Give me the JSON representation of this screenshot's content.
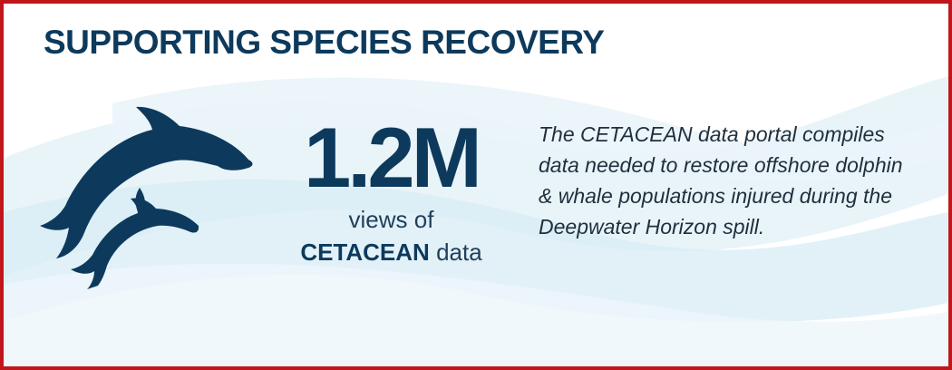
{
  "heading": "SUPPORTING SPECIES RECOVERY",
  "stat": {
    "value": "1.2M",
    "line1": "views of",
    "line2_strong": "CETACEAN",
    "line2_rest": " data"
  },
  "description": "The CETACEAN data portal compiles data needed to restore offshore dolphin & whale populations injured during the Deepwater Horizon spill.",
  "colors": {
    "border": "#c0171c",
    "navy": "#0d3a5c",
    "wave": "#d6ebf5"
  },
  "icons": [
    "dolphin-icon",
    "dolphin-icon"
  ]
}
